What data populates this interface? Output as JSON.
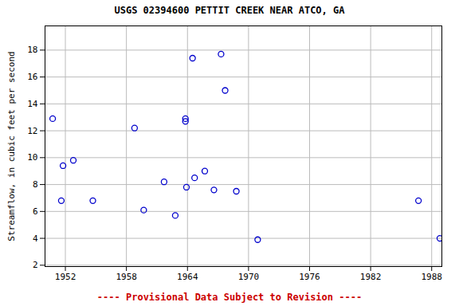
{
  "chart_data": {
    "type": "scatter",
    "title": "USGS 02394600 PETTIT CREEK NEAR ATCO, GA",
    "caption": "---- Provisional Data Subject to Revision ----",
    "y_label": "Streamflow, in cubic feet per second",
    "x": [
      1950.75,
      1951.6,
      1951.77,
      1952.78,
      1954.7,
      1958.8,
      1959.7,
      1961.7,
      1962.8,
      1963.8,
      1963.8,
      1963.9,
      1964.5,
      1964.7,
      1965.7,
      1966.6,
      1967.3,
      1967.7,
      1968.8,
      1970.9,
      1986.7,
      1988.8
    ],
    "values": [
      12.9,
      6.8,
      9.4,
      9.8,
      6.8,
      12.2,
      6.1,
      8.2,
      5.7,
      12.9,
      12.7,
      7.8,
      17.4,
      8.5,
      9.0,
      7.6,
      17.7,
      15.0,
      7.5,
      3.9,
      6.8,
      4.0
    ],
    "color": "#0000cc",
    "marker": "open_circle",
    "xlim": [
      1950,
      1989
    ],
    "xticks": [
      1952,
      1958,
      1964,
      1970,
      1976,
      1982,
      1988
    ],
    "ylim": [
      1.9,
      19.8
    ],
    "yticks": [
      2,
      4,
      6,
      8,
      10,
      12,
      14,
      16,
      18
    ],
    "grid": true
  }
}
